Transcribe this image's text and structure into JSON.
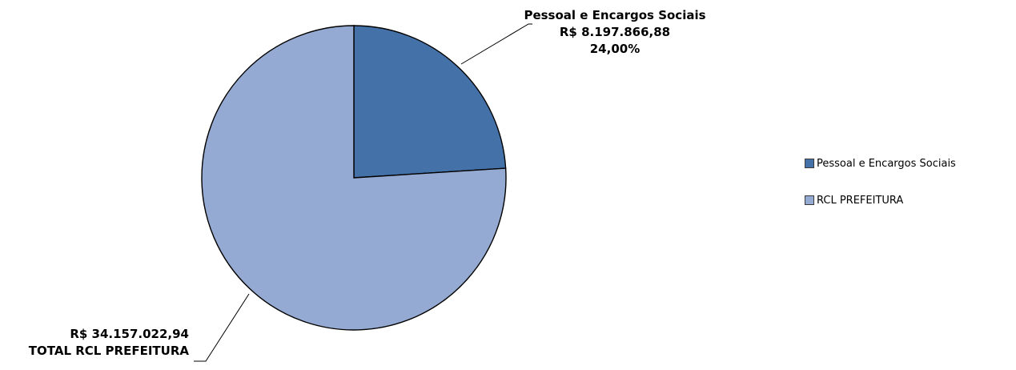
{
  "chart_data": {
    "type": "pie",
    "title": "",
    "slices": [
      {
        "name": "Pessoal e Encargos Sociais",
        "value": 8197866.88,
        "percent": 24.0,
        "label_lines": [
          "Pessoal e Encargos Sociais",
          "R$ 8.197.866,88",
          "24,00%"
        ],
        "color": "#4472A8"
      },
      {
        "name": "RCL PREFEITURA",
        "value": 25959156.06,
        "percent": 76.0,
        "label_lines": [
          "R$ 34.157.022,94",
          "TOTAL RCL PREFEITURA"
        ],
        "color": "#95AAD2"
      }
    ],
    "total_label": "R$ 34.157.022,94",
    "legend": {
      "position": "right",
      "entries": [
        "Pessoal e Encargos Sociais",
        "RCL PREFEITURA"
      ]
    }
  }
}
